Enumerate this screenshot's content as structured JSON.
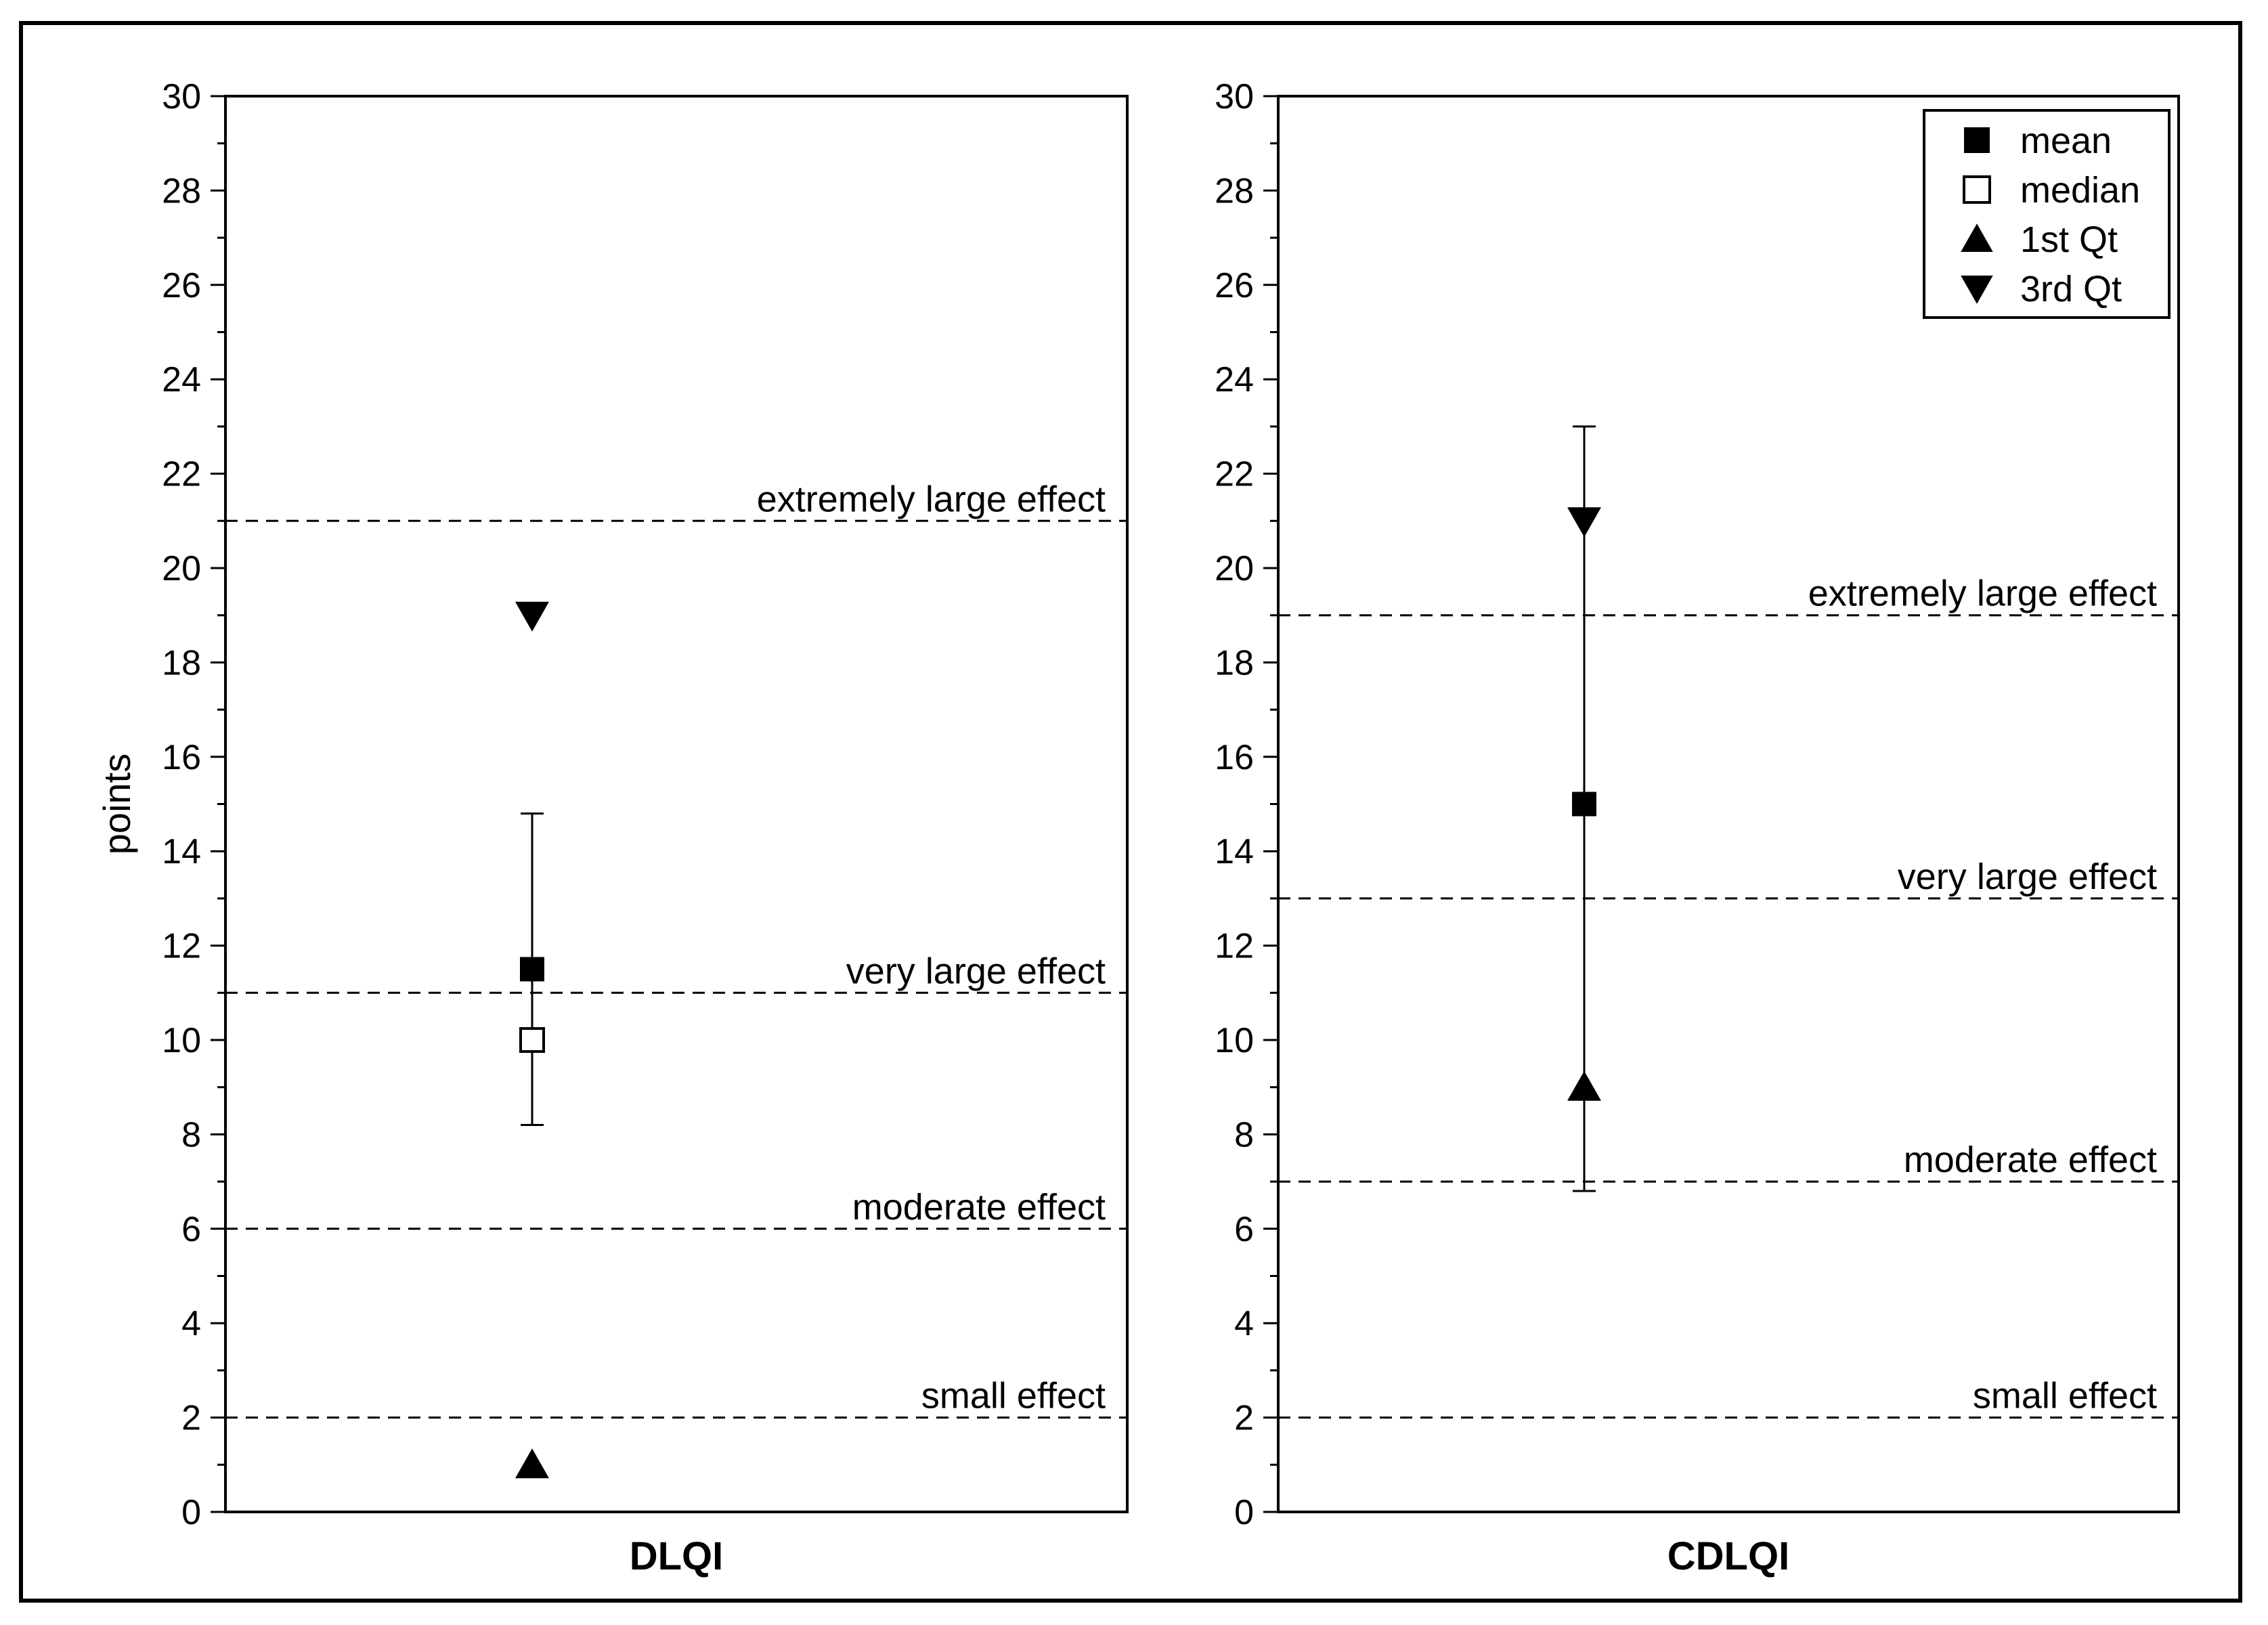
{
  "chart_data": [
    {
      "type": "scatter",
      "title": "DLQI",
      "ylabel": "points",
      "ylim": [
        0,
        30
      ],
      "yticks": [
        0,
        2,
        4,
        6,
        8,
        10,
        12,
        14,
        16,
        18,
        20,
        22,
        24,
        26,
        28,
        30
      ],
      "grid": false,
      "thresholds": [
        {
          "label": "extremely large effect",
          "value": 21
        },
        {
          "label": "very large effect",
          "value": 11
        },
        {
          "label": "moderate effect",
          "value": 6
        },
        {
          "label": "small effect",
          "value": 2
        }
      ],
      "stats": {
        "mean": 11.5,
        "median": 10,
        "q1": 1,
        "q3": 19
      },
      "error_bar": {
        "low": 8.2,
        "high": 14.8
      }
    },
    {
      "type": "scatter",
      "title": "CDLQI",
      "ylabel": "",
      "ylim": [
        0,
        30
      ],
      "yticks": [
        0,
        2,
        4,
        6,
        8,
        10,
        12,
        14,
        16,
        18,
        20,
        22,
        24,
        26,
        28,
        30
      ],
      "grid": false,
      "thresholds": [
        {
          "label": "extremely large effect",
          "value": 19
        },
        {
          "label": "very large effect",
          "value": 13
        },
        {
          "label": "moderate effect",
          "value": 7
        },
        {
          "label": "small effect",
          "value": 2
        }
      ],
      "stats": {
        "mean": 15,
        "median": null,
        "q1": 9,
        "q3": 21
      },
      "error_bar": {
        "low": 6.8,
        "high": 23
      }
    }
  ],
  "legend": {
    "position": "top-right",
    "entries": [
      {
        "label": "mean",
        "marker": "filled-square"
      },
      {
        "label": "median",
        "marker": "open-square"
      },
      {
        "label": "1st Qt",
        "marker": "up-triangle"
      },
      {
        "label": "3rd Qt",
        "marker": "down-triangle"
      }
    ]
  }
}
